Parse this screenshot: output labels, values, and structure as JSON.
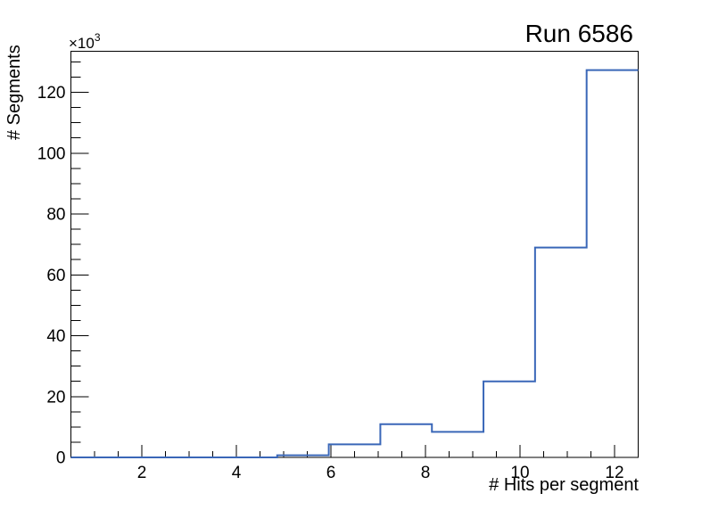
{
  "page": {
    "background_color": "#ffffff"
  },
  "chart_data": {
    "type": "histogram",
    "title": "Run 6586",
    "xlabel": "# Hits per segment",
    "ylabel": "# Segments",
    "y_axis_multiplier": {
      "base": "×10",
      "exponent": "3"
    },
    "xlim": [
      0.5,
      12.5
    ],
    "ylim_thousands": [
      0,
      133.5
    ],
    "bin_edges": [
      0.5,
      1.5909,
      2.6818,
      3.7727,
      4.8636,
      5.9545,
      7.0455,
      8.1364,
      9.2273,
      10.3182,
      11.4091,
      12.5
    ],
    "counts_thousands": [
      0,
      0,
      0,
      0,
      0.7,
      4.3,
      10.9,
      8.4,
      25.0,
      69.0,
      127.3
    ],
    "x_major_ticks": [
      2,
      4,
      6,
      8,
      10,
      12
    ],
    "x_major_tick_labels": [
      "2",
      "4",
      "6",
      "8",
      "10",
      "12"
    ],
    "x_minor_step": 0.5,
    "y_major_ticks_thousands": [
      0,
      20,
      40,
      60,
      80,
      100,
      120
    ],
    "y_major_tick_labels": [
      "0",
      "20",
      "40",
      "60",
      "80",
      "100",
      "120"
    ],
    "y_minor_step_thousands": 5,
    "line_color": "#3a67b8",
    "frame_color": "#000000",
    "grid": false,
    "legend": null
  }
}
